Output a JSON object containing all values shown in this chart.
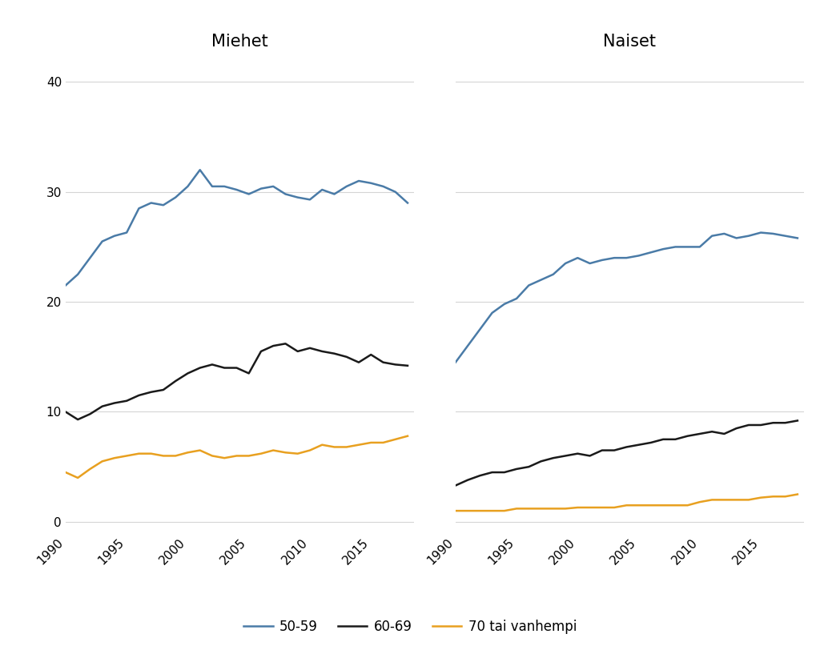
{
  "years": [
    1990,
    1991,
    1992,
    1993,
    1994,
    1995,
    1996,
    1997,
    1998,
    1999,
    2000,
    2001,
    2002,
    2003,
    2004,
    2005,
    2006,
    2007,
    2008,
    2009,
    2010,
    2011,
    2012,
    2013,
    2014,
    2015,
    2016,
    2017,
    2018
  ],
  "men_50_59": [
    21.5,
    22.5,
    24.0,
    25.5,
    26.0,
    26.3,
    28.5,
    29.0,
    28.8,
    29.5,
    30.5,
    32.0,
    30.5,
    30.5,
    30.2,
    29.8,
    30.3,
    30.5,
    29.8,
    29.5,
    29.3,
    30.2,
    29.8,
    30.5,
    31.0,
    30.8,
    30.5,
    30.0,
    29.0
  ],
  "men_60_69": [
    10.0,
    9.3,
    9.8,
    10.5,
    10.8,
    11.0,
    11.5,
    11.8,
    12.0,
    12.8,
    13.5,
    14.0,
    14.3,
    14.0,
    14.0,
    13.5,
    15.5,
    16.0,
    16.2,
    15.5,
    15.8,
    15.5,
    15.3,
    15.0,
    14.5,
    15.2,
    14.5,
    14.3,
    14.2
  ],
  "men_70p": [
    4.5,
    4.0,
    4.8,
    5.5,
    5.8,
    6.0,
    6.2,
    6.2,
    6.0,
    6.0,
    6.3,
    6.5,
    6.0,
    5.8,
    6.0,
    6.0,
    6.2,
    6.5,
    6.3,
    6.2,
    6.5,
    7.0,
    6.8,
    6.8,
    7.0,
    7.2,
    7.2,
    7.5,
    7.8
  ],
  "women_50_59": [
    14.5,
    16.0,
    17.5,
    19.0,
    19.8,
    20.3,
    21.5,
    22.0,
    22.5,
    23.5,
    24.0,
    23.5,
    23.8,
    24.0,
    24.0,
    24.2,
    24.5,
    24.8,
    25.0,
    25.0,
    25.0,
    26.0,
    26.2,
    25.8,
    26.0,
    26.3,
    26.2,
    26.0,
    25.8
  ],
  "women_60_69": [
    3.3,
    3.8,
    4.2,
    4.5,
    4.5,
    4.8,
    5.0,
    5.5,
    5.8,
    6.0,
    6.2,
    6.0,
    6.5,
    6.5,
    6.8,
    7.0,
    7.2,
    7.5,
    7.5,
    7.8,
    8.0,
    8.2,
    8.0,
    8.5,
    8.8,
    8.8,
    9.0,
    9.0,
    9.2
  ],
  "women_70p": [
    1.0,
    1.0,
    1.0,
    1.0,
    1.0,
    1.2,
    1.2,
    1.2,
    1.2,
    1.2,
    1.3,
    1.3,
    1.3,
    1.3,
    1.5,
    1.5,
    1.5,
    1.5,
    1.5,
    1.5,
    1.8,
    2.0,
    2.0,
    2.0,
    2.0,
    2.2,
    2.3,
    2.3,
    2.5
  ],
  "color_50_59": "#4a7ba7",
  "color_60_69": "#1a1a1a",
  "color_70p": "#e8a020",
  "title_men": "Miehet",
  "title_women": "Naiset",
  "legend_labels": [
    "50-59",
    "60-69",
    "70 tai vanhempi"
  ],
  "ylim": [
    -1,
    42
  ],
  "yticks": [
    0,
    10,
    20,
    30,
    40
  ],
  "xticks": [
    1990,
    1995,
    2000,
    2005,
    2010,
    2015
  ],
  "xlim_left": 1990,
  "xlim_right": 2018.5,
  "background_color": "#ffffff",
  "line_width": 1.8,
  "title_fontsize": 15,
  "tick_fontsize": 11,
  "legend_fontsize": 12,
  "grid_color": "#d5d5d5",
  "grid_linewidth": 0.8
}
